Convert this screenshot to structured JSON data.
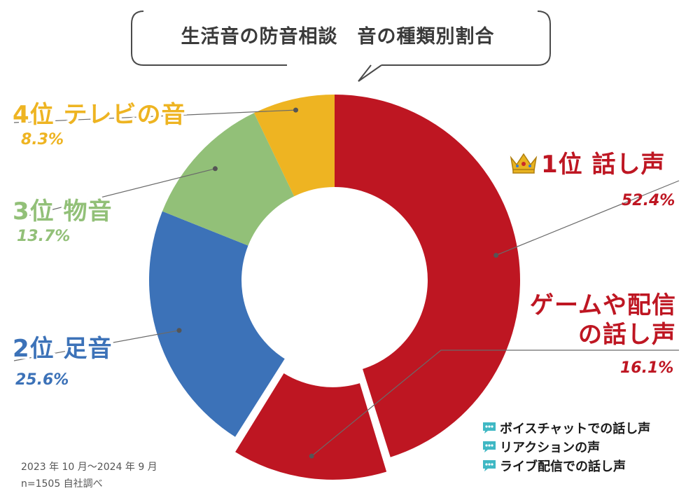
{
  "title": "生活音の防音相談　音の種類別割合",
  "chart_data": {
    "type": "donut",
    "title": "生活音の防音相談　音の種類別割合",
    "slices": [
      {
        "label": "話し声",
        "rank_label": "1位 話し声",
        "value": 52.4,
        "value_label": "52.4%",
        "color": "#be1622"
      },
      {
        "label": "ゲームや配信の話し声",
        "rank_label_line1": "ゲームや配信",
        "rank_label_line2": "の話し声",
        "value": 16.1,
        "value_label": "16.1%",
        "color": "#be1622",
        "exploded": true
      },
      {
        "label": "足音",
        "rank_label": "2位 足音",
        "value": 25.6,
        "value_label": "25.6%",
        "color": "#3c72b8"
      },
      {
        "label": "物音",
        "rank_label": "3位 物音",
        "value": 13.7,
        "value_label": "13.7%",
        "color": "#92c078"
      },
      {
        "label": "テレビの音",
        "rank_label": "4位 テレビの音",
        "value": 8.3,
        "value_label": "8.3%",
        "color": "#eeb422"
      }
    ]
  },
  "bullets": [
    "ボイスチャットでの話し声",
    "リアクションの声",
    "ライブ配信での話し声"
  ],
  "footnote": {
    "period": "2023 年 10 月～2024 年 9 月",
    "sample": "n=1505  自社調べ"
  },
  "icons": {
    "crown": "crown-icon",
    "chat": "chat-bubble-icon"
  }
}
